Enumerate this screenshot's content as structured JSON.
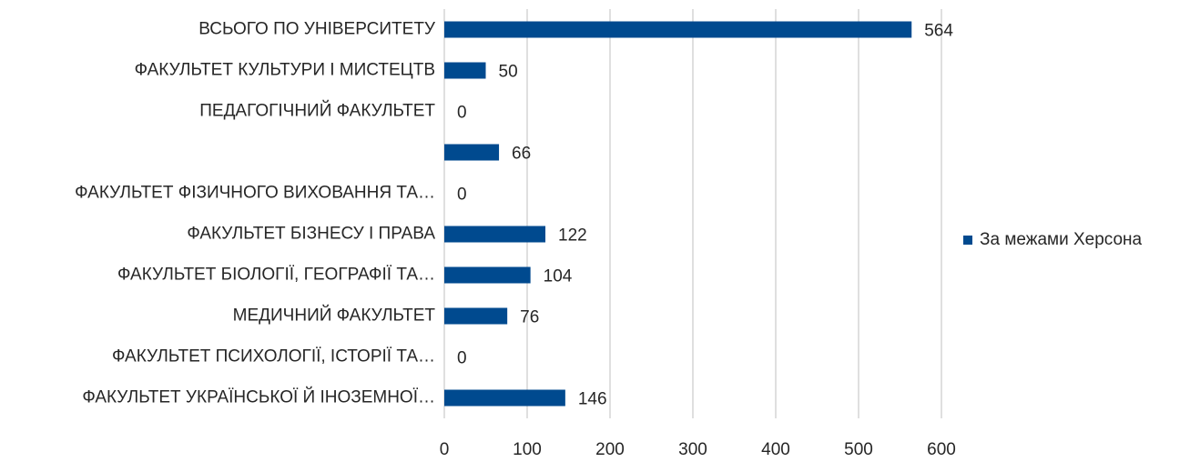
{
  "chart_data": {
    "type": "bar",
    "orientation": "horizontal",
    "categories": [
      "ВСЬОГО ПО УНІВЕРСИТЕТУ",
      "ФАКУЛЬТЕТ КУЛЬТУРИ І МИСТЕЦТВ",
      "ПЕДАГОГІЧНИЙ ФАКУЛЬТЕТ",
      null,
      "ФАКУЛЬТЕТ ФІЗИЧНОГО ВИХОВАННЯ ТА…",
      "ФАКУЛЬТЕТ БІЗНЕСУ І ПРАВА",
      "ФАКУЛЬТЕТ БІОЛОГІЇ, ГЕОГРАФІЇ ТА…",
      "МЕДИЧНИЙ ФАКУЛЬТЕТ",
      "ФАКУЛЬТЕТ ПСИХОЛОГІЇ, ІСТОРІЇ ТА…",
      "ФАКУЛЬТЕТ УКРАЇНСЬКОЇ Й ІНОЗЕМНОЇ…"
    ],
    "series": [
      {
        "name": "За межами Херсона",
        "color": "#004a8f",
        "values": [
          564,
          50,
          0,
          66,
          0,
          122,
          104,
          76,
          0,
          146
        ]
      }
    ],
    "xlim": [
      0,
      600
    ],
    "xticks": [
      0,
      100,
      200,
      300,
      400,
      500,
      600
    ],
    "grid": true,
    "legend": "right"
  }
}
